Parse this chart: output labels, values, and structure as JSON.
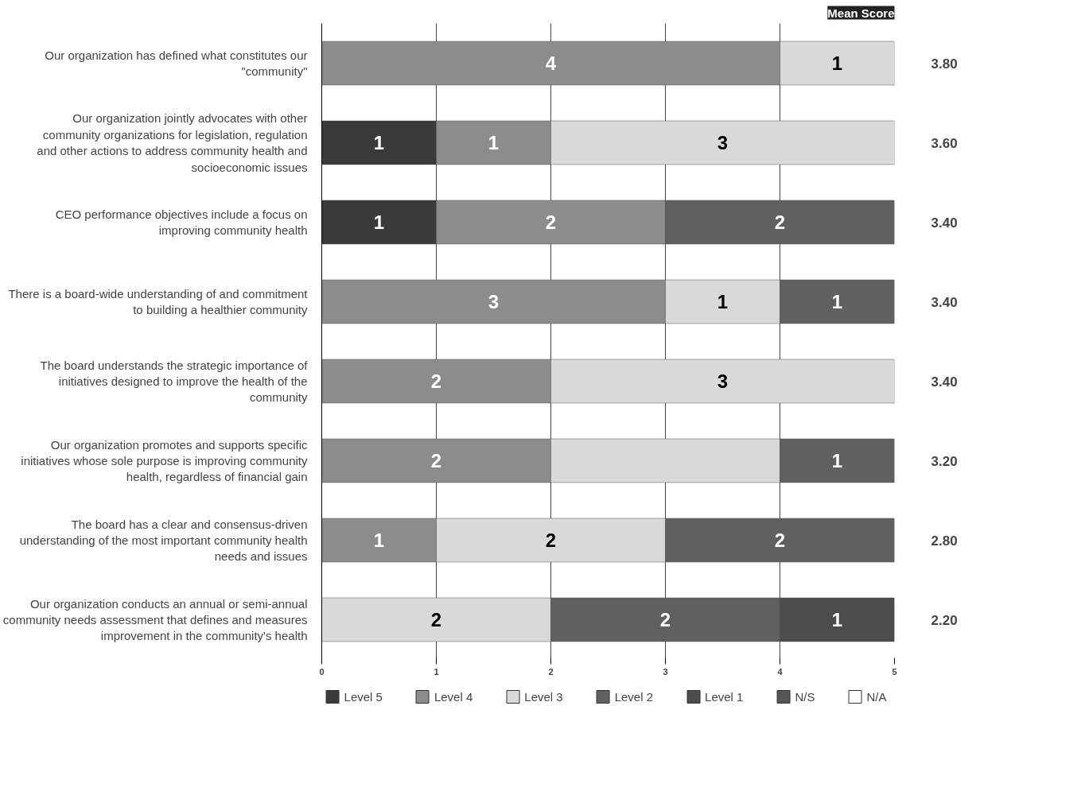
{
  "chart_data": {
    "type": "bar",
    "orientation": "horizontal",
    "stacked": true,
    "categories": [
      "Our organization has defined what constitutes our \"community\"",
      "Our organization jointly advocates with other community organizations for legislation, regulation and other actions to address community health and socioeconomic issues",
      "CEO performance objectives include a focus on improving community health",
      "There is a board-wide understanding of and commitment to building a healthier community",
      "The board understands the strategic importance of initiatives designed to improve the health of the community",
      "Our organization promotes and supports specific initiatives whose sole purpose is improving community health, regardless of financial gain",
      "The board has a clear and consensus-driven understanding of the most important community health needs and issues",
      "Our organization conducts an annual or semi-annual community needs assessment that defines and measures improvement in the community's health"
    ],
    "series": [
      {
        "name": "Level 5",
        "color": "#3a3a3a",
        "values": [
          0,
          1,
          1,
          0,
          0,
          0,
          0,
          0
        ],
        "value_labels": [
          null,
          "1",
          "1",
          null,
          null,
          null,
          null,
          null
        ]
      },
      {
        "name": "Level 4",
        "color": "#8c8c8c",
        "values": [
          4,
          1,
          2,
          3,
          2,
          2,
          1,
          0
        ],
        "value_labels": [
          "4",
          "1",
          "2",
          "3",
          "2",
          "2",
          "1",
          null
        ]
      },
      {
        "name": "Level 3",
        "color": "#d9d9d9",
        "values": [
          1,
          3,
          0,
          1,
          3,
          2,
          2,
          2
        ],
        "value_labels": [
          "1",
          "3",
          null,
          "1",
          "3",
          null,
          "2",
          "2"
        ]
      },
      {
        "name": "Level 2",
        "color": "#606060",
        "values": [
          0,
          0,
          2,
          1,
          0,
          1,
          2,
          2
        ],
        "value_labels": [
          null,
          null,
          "2",
          "1",
          null,
          "1",
          "2",
          "2"
        ]
      },
      {
        "name": "Level 1",
        "color": "#4c4c4c",
        "values": [
          0,
          0,
          0,
          0,
          0,
          0,
          0,
          1
        ],
        "value_labels": [
          null,
          null,
          null,
          null,
          null,
          null,
          null,
          "1"
        ]
      },
      {
        "name": "N/S",
        "color": "#555555",
        "values": [
          0,
          0,
          0,
          0,
          0,
          0,
          0,
          0
        ]
      },
      {
        "name": "N/A",
        "color": "#ffffff",
        "values": [
          0,
          0,
          0,
          0,
          0,
          0,
          0,
          0
        ]
      }
    ],
    "xlim": [
      0,
      5
    ],
    "xticks": [
      0,
      1,
      2,
      3,
      4,
      5
    ],
    "grid": "x",
    "legend": "bottom",
    "annotations": [
      "Mean Score",
      "3.80",
      "3.60",
      "3.40",
      "3.40",
      "3.40",
      "3.20",
      "2.80",
      "2.20"
    ]
  }
}
